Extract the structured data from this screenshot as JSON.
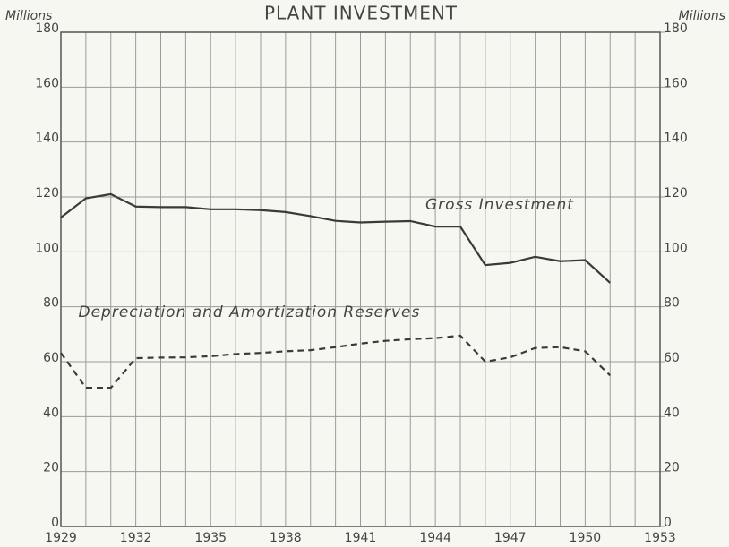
{
  "chart_data": {
    "type": "line",
    "title": "PLANT INVESTMENT",
    "y_label": "Millions",
    "y2_label": "Millions",
    "x": [
      1929,
      1930,
      1931,
      1932,
      1933,
      1934,
      1935,
      1936,
      1937,
      1938,
      1939,
      1940,
      1941,
      1942,
      1943,
      1944,
      1945,
      1946,
      1947,
      1948,
      1949,
      1950,
      1951
    ],
    "series": [
      {
        "name": "Gross Investment",
        "color": "#3a3a3a",
        "line_style": "solid",
        "values": [
          112.5,
          119.5,
          121,
          116.5,
          116.3,
          116.3,
          115.5,
          115.5,
          115.2,
          114.5,
          113,
          111.3,
          110.7,
          111,
          111.2,
          109.2,
          109.2,
          95.2,
          96,
          98.2,
          96.6,
          97,
          88.7
        ]
      },
      {
        "name": "Depreciation and Amortization Reserves",
        "color": "#3a3a3a",
        "line_style": "dashed",
        "values": [
          63.2,
          50.5,
          50.5,
          61.3,
          61.5,
          61.6,
          62,
          62.8,
          63.2,
          63.8,
          64.2,
          65.3,
          66.6,
          67.6,
          68.2,
          68.6,
          69.5,
          60,
          61.6,
          65,
          65.3,
          63.8,
          55
        ]
      }
    ],
    "xlim": [
      1929,
      1953
    ],
    "xticks": [
      1929,
      1932,
      1935,
      1938,
      1941,
      1944,
      1947,
      1950,
      1953
    ],
    "x_minor_ticks": [
      1930,
      1931,
      1933,
      1934,
      1936,
      1937,
      1939,
      1940,
      1942,
      1943,
      1945,
      1946,
      1948,
      1949,
      1951,
      1952
    ],
    "ylim": [
      0,
      180
    ],
    "yticks": [
      0,
      20,
      40,
      60,
      80,
      100,
      120,
      140,
      160,
      180
    ],
    "y2lim": [
      0,
      180
    ],
    "y2ticks": [
      0,
      20,
      40,
      60,
      80,
      100,
      120,
      140,
      160,
      180
    ],
    "grid": true
  }
}
